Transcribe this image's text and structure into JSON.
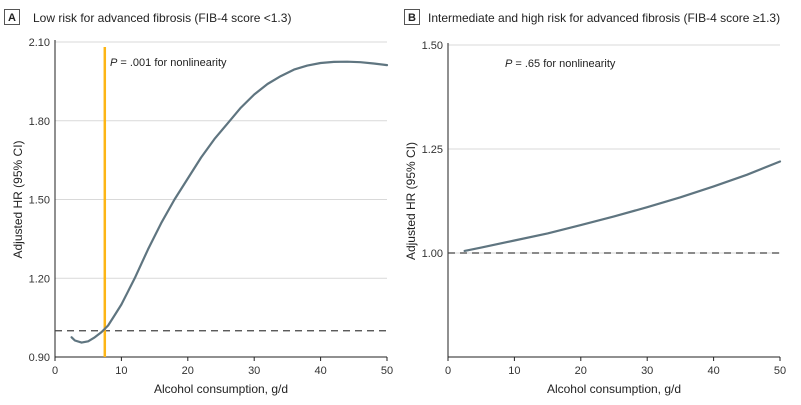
{
  "colors": {
    "curve": "#5f7580",
    "reference": "#fdb515",
    "grid": "#d9d9d9",
    "axis": "#222222",
    "panel_badge_border": "#555555"
  },
  "chart_data": [
    {
      "type": "line",
      "panel_letter": "A",
      "title": "Low risk for advanced fibrosis (FIB-4 score <1.3)",
      "xlabel": "Alcohol consumption, g/d",
      "ylabel": "Adjusted HR (95% CI)",
      "xlim": [
        0,
        50
      ],
      "ylim": [
        0.9,
        2.1
      ],
      "xticks": [
        "0",
        "10",
        "20",
        "30",
        "40",
        "50"
      ],
      "yticks": [
        "0.90",
        "1.20",
        "1.50",
        "1.80",
        "2.10"
      ],
      "grid": "horizontal",
      "annotation_p": "P",
      "annotation_text": " = .001 for nonlinearity",
      "reference_line_y": 1.0,
      "vertical_marker_x": 7.5,
      "series": [
        {
          "x": [
            2.5,
            3,
            4,
            5,
            6,
            7,
            8,
            9,
            10,
            12,
            14,
            16,
            18,
            20,
            22,
            24,
            26,
            28,
            30,
            32,
            34,
            36,
            38,
            40,
            42,
            44,
            46,
            48,
            50
          ],
          "y": [
            0.975,
            0.963,
            0.955,
            0.96,
            0.975,
            0.995,
            1.02,
            1.06,
            1.1,
            1.2,
            1.31,
            1.41,
            1.5,
            1.58,
            1.66,
            1.73,
            1.79,
            1.85,
            1.9,
            1.94,
            1.97,
            1.995,
            2.01,
            2.02,
            2.024,
            2.025,
            2.023,
            2.018,
            2.012
          ]
        }
      ]
    },
    {
      "type": "line",
      "panel_letter": "B",
      "title": "Intermediate and high risk for advanced fibrosis (FIB-4 score ≥1.3)",
      "xlabel": "Alcohol consumption, g/d",
      "ylabel": "Adjusted HR (95% CI)",
      "xlim": [
        0,
        50
      ],
      "ylim": [
        0.75,
        1.5
      ],
      "xticks": [
        "0",
        "10",
        "20",
        "30",
        "40",
        "50"
      ],
      "yticks": [
        "1.00",
        "1.25",
        "1.50"
      ],
      "grid": "horizontal",
      "annotation_p": "P",
      "annotation_text": " = .65 for nonlinearity",
      "reference_line_y": 1.0,
      "series": [
        {
          "x": [
            2.5,
            5,
            10,
            15,
            20,
            25,
            30,
            35,
            40,
            45,
            50
          ],
          "y": [
            1.005,
            1.013,
            1.03,
            1.047,
            1.067,
            1.088,
            1.11,
            1.134,
            1.16,
            1.188,
            1.22
          ]
        }
      ]
    }
  ]
}
